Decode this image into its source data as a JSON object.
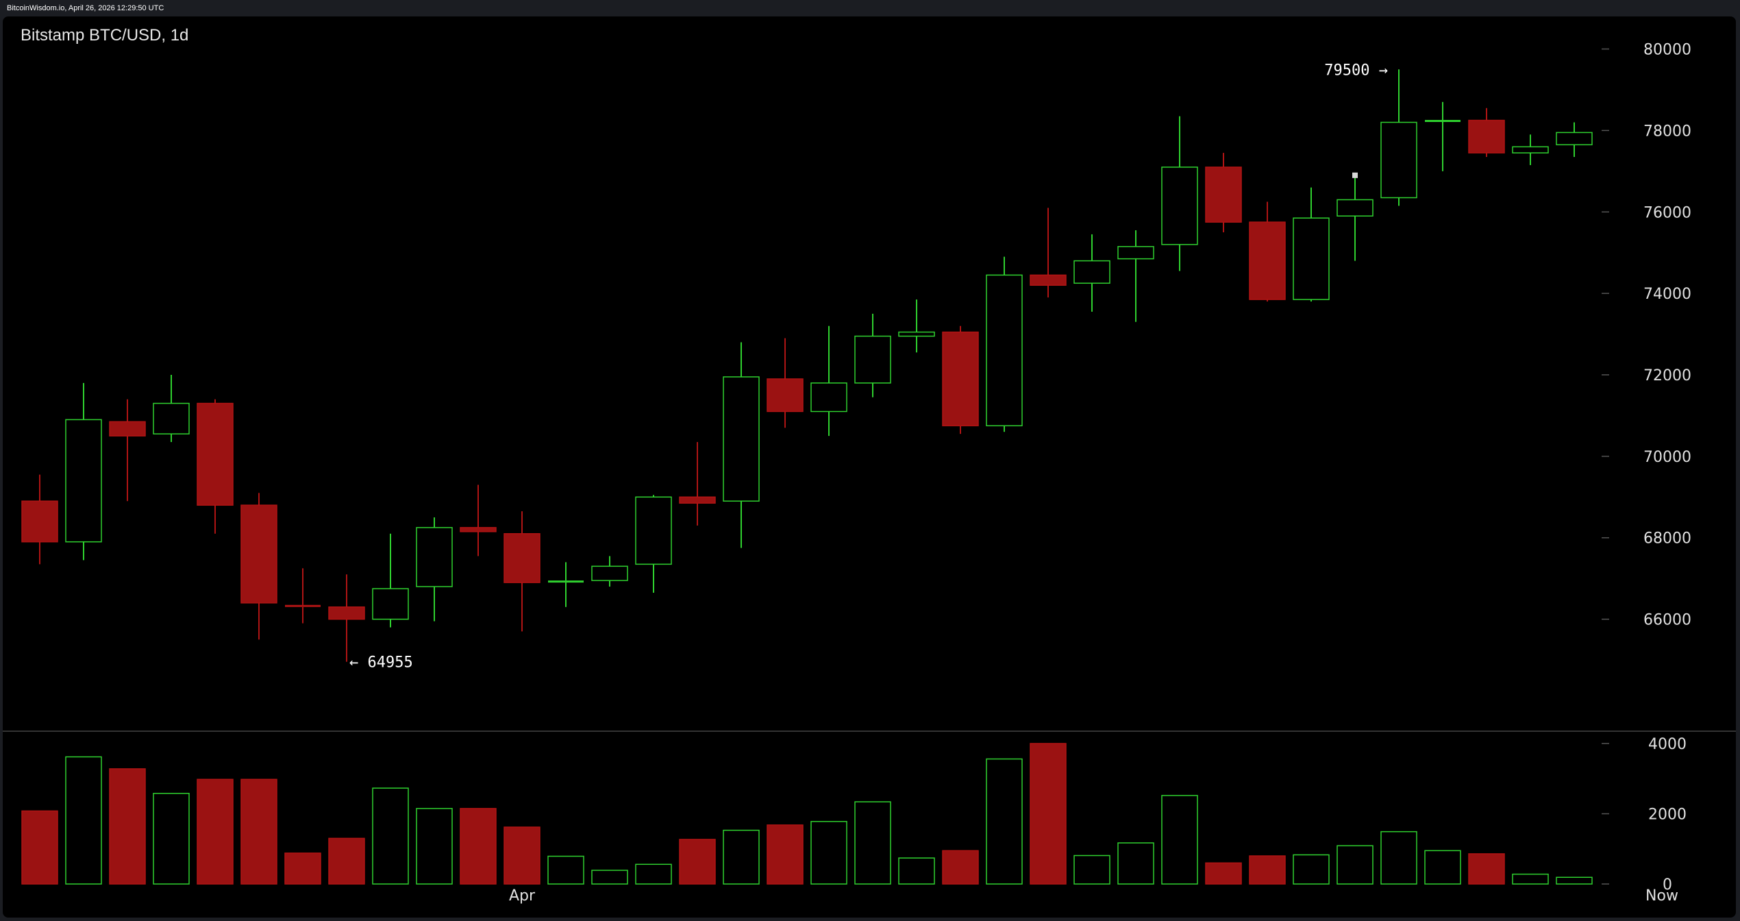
{
  "site_caption": "BitcoinWisdom.io, April 26, 2026 12:29:50 UTC",
  "colors": {
    "up": "#2fd12f",
    "down": "#b01414",
    "down_fill": "#9b1212",
    "axis_text": "#e0e0e0",
    "grid_tick": "#555555",
    "marker": "#d8d8d8"
  },
  "chart_data": {
    "type": "candlestick",
    "title": "Bitstamp BTC/USD, 1d",
    "price_axis": {
      "ylim": [
        63200,
        80800
      ],
      "ticks": [
        "80000",
        "78000",
        "76000",
        "74000",
        "72000",
        "70000",
        "68000",
        "66000"
      ]
    },
    "volume_axis": {
      "ylim": [
        0,
        4000
      ],
      "ticks": [
        "4000",
        "2000",
        "0"
      ]
    },
    "x_labels": [
      {
        "label": "Apr",
        "candle_index": 11
      },
      {
        "label": "Now",
        "candle_index": 37
      }
    ],
    "annotations": {
      "high": {
        "label": "79500 →",
        "value": 79500,
        "candle_index": 31
      },
      "low": {
        "label": "← 64955",
        "value": 64955,
        "candle_index": 7
      }
    },
    "marker": {
      "candle_index": 30,
      "value": 76900
    },
    "candles": [
      {
        "open": 68900,
        "high": 69550,
        "low": 67350,
        "close": 67900,
        "volume": 2080
      },
      {
        "open": 67900,
        "high": 71800,
        "low": 67450,
        "close": 70900,
        "volume": 3620
      },
      {
        "open": 70850,
        "high": 71400,
        "low": 68900,
        "close": 70500,
        "volume": 3280
      },
      {
        "open": 70550,
        "high": 72000,
        "low": 70350,
        "close": 71300,
        "volume": 2580
      },
      {
        "open": 71300,
        "high": 71400,
        "low": 68100,
        "close": 68800,
        "volume": 2980
      },
      {
        "open": 68800,
        "high": 69100,
        "low": 65500,
        "close": 66400,
        "volume": 2980
      },
      {
        "open": 66350,
        "high": 67250,
        "low": 65900,
        "close": 66300,
        "volume": 880
      },
      {
        "open": 66300,
        "high": 67100,
        "low": 64955,
        "close": 66000,
        "volume": 1300
      },
      {
        "open": 66000,
        "high": 68100,
        "low": 65800,
        "close": 66750,
        "volume": 2730
      },
      {
        "open": 66800,
        "high": 68500,
        "low": 65950,
        "close": 68250,
        "volume": 2150
      },
      {
        "open": 68250,
        "high": 69300,
        "low": 67550,
        "close": 68150,
        "volume": 2150
      },
      {
        "open": 68100,
        "high": 68650,
        "low": 65700,
        "close": 66900,
        "volume": 1620
      },
      {
        "open": 66900,
        "high": 67400,
        "low": 66300,
        "close": 66950,
        "volume": 790
      },
      {
        "open": 66950,
        "high": 67550,
        "low": 66800,
        "close": 67300,
        "volume": 390
      },
      {
        "open": 67350,
        "high": 69050,
        "low": 66650,
        "close": 69000,
        "volume": 560
      },
      {
        "open": 69000,
        "high": 70350,
        "low": 68300,
        "close": 68850,
        "volume": 1270
      },
      {
        "open": 68900,
        "high": 72800,
        "low": 67750,
        "close": 71950,
        "volume": 1530
      },
      {
        "open": 71900,
        "high": 72900,
        "low": 70700,
        "close": 71100,
        "volume": 1680
      },
      {
        "open": 71100,
        "high": 73200,
        "low": 70500,
        "close": 71800,
        "volume": 1780
      },
      {
        "open": 71800,
        "high": 73500,
        "low": 71450,
        "close": 72950,
        "volume": 2340
      },
      {
        "open": 72950,
        "high": 73850,
        "low": 72550,
        "close": 73050,
        "volume": 740
      },
      {
        "open": 73050,
        "high": 73200,
        "low": 70550,
        "close": 70750,
        "volume": 950
      },
      {
        "open": 70750,
        "high": 74900,
        "low": 70600,
        "close": 74450,
        "volume": 3560
      },
      {
        "open": 74450,
        "high": 76100,
        "low": 73900,
        "close": 74200,
        "volume": 4000
      },
      {
        "open": 74250,
        "high": 75450,
        "low": 73550,
        "close": 74800,
        "volume": 810
      },
      {
        "open": 74850,
        "high": 75550,
        "low": 73300,
        "close": 75150,
        "volume": 1170
      },
      {
        "open": 75200,
        "high": 78350,
        "low": 74550,
        "close": 77100,
        "volume": 2520
      },
      {
        "open": 77100,
        "high": 77450,
        "low": 75500,
        "close": 75750,
        "volume": 600
      },
      {
        "open": 75750,
        "high": 76250,
        "low": 73800,
        "close": 73850,
        "volume": 800
      },
      {
        "open": 73850,
        "high": 76600,
        "low": 73800,
        "close": 75850,
        "volume": 830
      },
      {
        "open": 75900,
        "high": 76850,
        "low": 74800,
        "close": 76300,
        "volume": 1090
      },
      {
        "open": 76350,
        "high": 79500,
        "low": 76150,
        "close": 78200,
        "volume": 1490
      },
      {
        "open": 78250,
        "high": 78700,
        "low": 77000,
        "close": 78250,
        "volume": 950
      },
      {
        "open": 78250,
        "high": 78550,
        "low": 77350,
        "close": 77450,
        "volume": 860
      },
      {
        "open": 77450,
        "high": 77900,
        "low": 77150,
        "close": 77600,
        "volume": 280
      },
      {
        "open": 77650,
        "high": 78200,
        "low": 77350,
        "close": 77950,
        "volume": 190
      }
    ]
  }
}
